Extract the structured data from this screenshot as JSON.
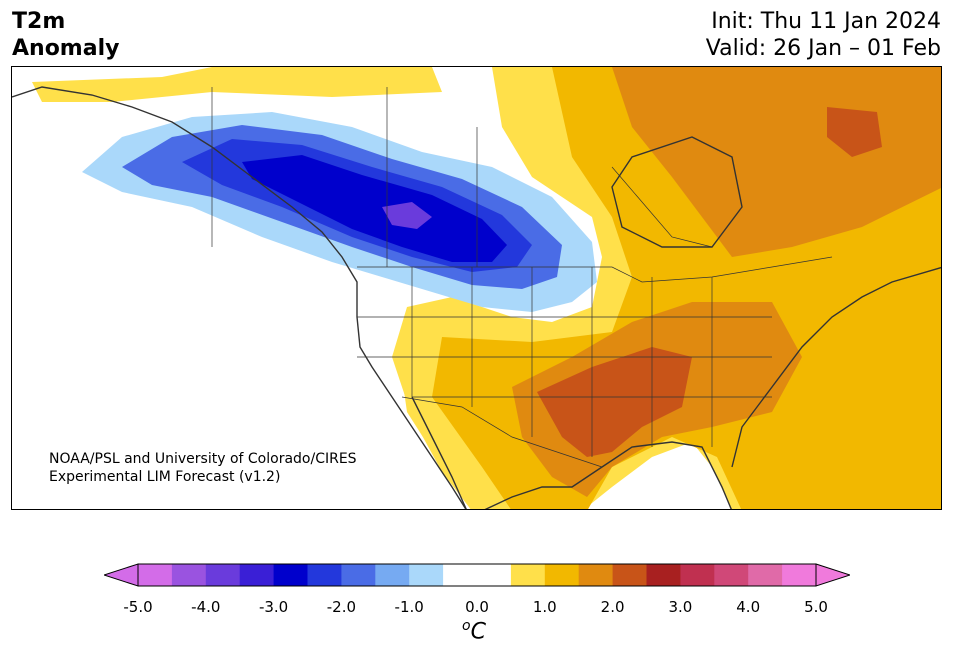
{
  "header": {
    "variable": "T2m",
    "subtitle": "Anomaly",
    "init": "Init: Thu 11 Jan 2024",
    "valid": "Valid: 26 Jan – 01 Feb"
  },
  "map": {
    "credit_line1": "NOAA/PSL and University of Colorado/CIRES",
    "credit_line2": "Experimental LIM Forecast (v1.2)",
    "region": "North America"
  },
  "colorbar": {
    "unit_base": "C",
    "unit_sup": "o",
    "ticks": [
      "-5.0",
      "-4.0",
      "-3.0",
      "-2.0",
      "-1.0",
      "0.0",
      "1.0",
      "2.0",
      "3.0",
      "4.0",
      "5.0"
    ],
    "colors": [
      "#d36ce8",
      "#9a53e0",
      "#6a3bdc",
      "#3a1fd6",
      "#0000cc",
      "#2338dc",
      "#4a6ce6",
      "#76aaf2",
      "#aad8fa",
      "#ffffff",
      "#ffffff",
      "#ffe04a",
      "#f2b800",
      "#e08a10",
      "#c85418",
      "#a82020",
      "#c03050",
      "#d04878",
      "#e06aa8",
      "#f07adc"
    ]
  }
}
